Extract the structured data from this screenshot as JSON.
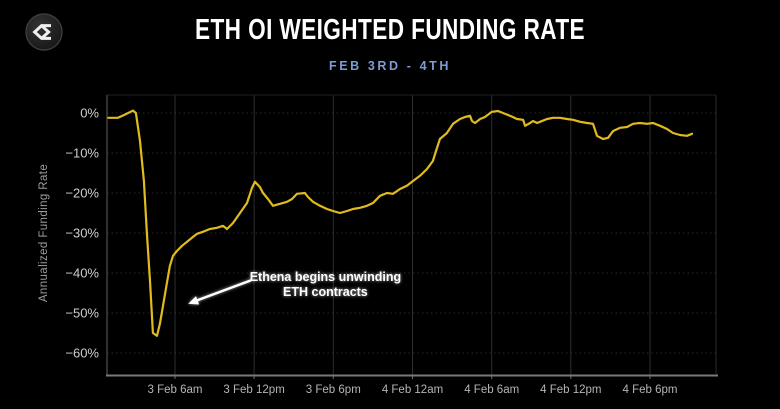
{
  "header": {
    "title": "ETH OI WEIGHTED FUNDING RATE",
    "subtitle": "FEB 3RD - 4TH",
    "logo_icon": "sigma-diamond-logo"
  },
  "colors": {
    "background": "#000000",
    "title": "#ffffff",
    "subtitle": "#7d9bd5",
    "line": "#e0bb1e",
    "grid_h": "#4a4a4a",
    "grid_v": "#333333",
    "axis_left": "#4f4f4f",
    "axis_bottom": "#7a7a7a",
    "plot_border": "#2a2a2a",
    "tick_label_y": "#cfcfcf",
    "tick_label_x": "#b5b5b5",
    "axis_title": "#9c9c9c",
    "annotation": "#ffffff"
  },
  "chart_data": {
    "type": "line",
    "title": "ETH OI WEIGHTED FUNDING RATE",
    "subtitle": "FEB 3RD - 4TH",
    "xlabel": "",
    "ylabel": "Annualized Funding Rate",
    "ylim": [
      -65.5,
      4.5
    ],
    "xlim_hours": [
      0.85,
      47.0
    ],
    "grid": true,
    "legend_position": "none",
    "y_ticks": [
      {
        "value": 0,
        "label": "0%"
      },
      {
        "value": -10,
        "label": "−10%"
      },
      {
        "value": -20,
        "label": "−20%"
      },
      {
        "value": -30,
        "label": "−30%"
      },
      {
        "value": -40,
        "label": "−40%"
      },
      {
        "value": -50,
        "label": "−50%"
      },
      {
        "value": -60,
        "label": "−60%"
      }
    ],
    "x_ticks": [
      {
        "hour": 6,
        "label": "3 Feb 6am"
      },
      {
        "hour": 12,
        "label": "3 Feb 12pm"
      },
      {
        "hour": 18,
        "label": "3 Feb 6pm"
      },
      {
        "hour": 24,
        "label": "4 Feb 12am"
      },
      {
        "hour": 30,
        "label": "4 Feb 6am"
      },
      {
        "hour": 36,
        "label": "4 Feb 12pm"
      },
      {
        "hour": 42,
        "label": "4 Feb 6pm"
      }
    ],
    "series": [
      {
        "name": "ETH OI weighted funding rate (annualized %)",
        "color": "#e0bb1e",
        "points": [
          [
            0.95,
            -1.2
          ],
          [
            1.68,
            -1.2
          ],
          [
            2.21,
            -0.4
          ],
          [
            2.82,
            0.6
          ],
          [
            3.04,
            0.0
          ],
          [
            3.35,
            -7.0
          ],
          [
            3.65,
            -17.0
          ],
          [
            3.88,
            -30.5
          ],
          [
            4.11,
            -42.0
          ],
          [
            4.33,
            -55.0
          ],
          [
            4.64,
            -55.7
          ],
          [
            4.86,
            -52.7
          ],
          [
            5.09,
            -48.2
          ],
          [
            5.39,
            -42.5
          ],
          [
            5.62,
            -38.2
          ],
          [
            5.85,
            -35.7
          ],
          [
            6.15,
            -34.5
          ],
          [
            6.53,
            -33.2
          ],
          [
            6.99,
            -32.0
          ],
          [
            7.36,
            -31.0
          ],
          [
            7.67,
            -30.2
          ],
          [
            8.12,
            -29.7
          ],
          [
            8.65,
            -29.0
          ],
          [
            9.18,
            -28.7
          ],
          [
            9.64,
            -28.2
          ],
          [
            9.94,
            -29.0
          ],
          [
            10.4,
            -27.5
          ],
          [
            10.93,
            -25.0
          ],
          [
            11.46,
            -22.5
          ],
          [
            11.84,
            -18.7
          ],
          [
            12.06,
            -17.2
          ],
          [
            12.44,
            -18.5
          ],
          [
            12.67,
            -20.0
          ],
          [
            13.05,
            -21.5
          ],
          [
            13.43,
            -23.2
          ],
          [
            13.96,
            -22.7
          ],
          [
            14.49,
            -22.2
          ],
          [
            14.87,
            -21.5
          ],
          [
            15.25,
            -20.2
          ],
          [
            15.85,
            -20.0
          ],
          [
            16.08,
            -21.0
          ],
          [
            16.46,
            -22.2
          ],
          [
            16.99,
            -23.2
          ],
          [
            17.52,
            -24.0
          ],
          [
            17.98,
            -24.5
          ],
          [
            18.51,
            -25.0
          ],
          [
            19.04,
            -24.5
          ],
          [
            19.49,
            -24.0
          ],
          [
            20.02,
            -23.7
          ],
          [
            20.55,
            -23.2
          ],
          [
            21.01,
            -22.5
          ],
          [
            21.54,
            -20.7
          ],
          [
            22.07,
            -20.0
          ],
          [
            22.52,
            -20.2
          ],
          [
            23.05,
            -19.0
          ],
          [
            23.58,
            -18.2
          ],
          [
            24.04,
            -17.0
          ],
          [
            24.57,
            -15.7
          ],
          [
            25.1,
            -14.0
          ],
          [
            25.55,
            -12.0
          ],
          [
            25.78,
            -9.5
          ],
          [
            26.08,
            -6.5
          ],
          [
            26.61,
            -5.0
          ],
          [
            27.07,
            -2.7
          ],
          [
            27.6,
            -1.5
          ],
          [
            27.98,
            -1.0
          ],
          [
            28.36,
            -0.7
          ],
          [
            28.51,
            -2.0
          ],
          [
            28.74,
            -2.5
          ],
          [
            29.12,
            -1.5
          ],
          [
            29.49,
            -1.0
          ],
          [
            30.02,
            0.3
          ],
          [
            30.48,
            0.5
          ],
          [
            30.86,
            0.0
          ],
          [
            31.39,
            -0.7
          ],
          [
            31.92,
            -1.5
          ],
          [
            32.38,
            -1.7
          ],
          [
            32.53,
            -3.2
          ],
          [
            32.91,
            -2.5
          ],
          [
            33.13,
            -2.0
          ],
          [
            33.44,
            -2.5
          ],
          [
            33.66,
            -2.2
          ],
          [
            34.19,
            -1.5
          ],
          [
            34.65,
            -1.2
          ],
          [
            35.18,
            -1.2
          ],
          [
            35.71,
            -1.5
          ],
          [
            36.16,
            -1.7
          ],
          [
            36.7,
            -2.2
          ],
          [
            37.23,
            -2.5
          ],
          [
            37.68,
            -2.7
          ],
          [
            37.98,
            -5.7
          ],
          [
            38.44,
            -6.5
          ],
          [
            38.82,
            -6.2
          ],
          [
            39.2,
            -4.5
          ],
          [
            39.73,
            -3.7
          ],
          [
            40.26,
            -3.5
          ],
          [
            40.71,
            -2.7
          ],
          [
            41.24,
            -2.5
          ],
          [
            41.77,
            -2.7
          ],
          [
            42.23,
            -2.5
          ],
          [
            42.76,
            -3.2
          ],
          [
            43.29,
            -4.0
          ],
          [
            43.74,
            -5.0
          ],
          [
            44.27,
            -5.5
          ],
          [
            44.8,
            -5.7
          ],
          [
            45.18,
            -5.2
          ]
        ]
      }
    ],
    "annotation": {
      "lines": [
        "Ethena begins unwinding",
        "ETH contracts"
      ],
      "text_pos": {
        "hour": 17.4,
        "value": -42.0
      },
      "arrow": {
        "from": {
          "hour": 11.7,
          "value": -41.9
        },
        "to": {
          "hour": 7.0,
          "value": -47.7
        }
      }
    }
  }
}
